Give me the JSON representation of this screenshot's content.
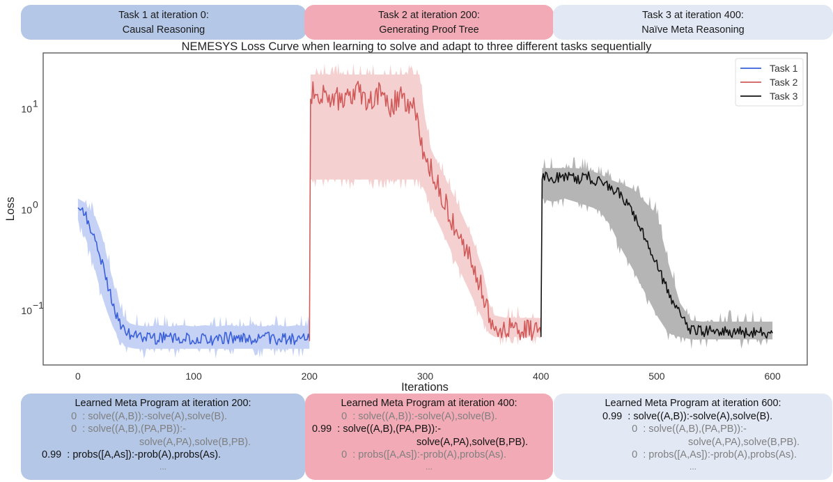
{
  "top_boxes": [
    {
      "line1": "Task 1 at iteration 0:",
      "line2": "Causal Reasoning",
      "color": "#b4c7e7"
    },
    {
      "line1": "Task 2 at iteration 200:",
      "line2": "Generating Proof Tree",
      "color": "#f2abb6"
    },
    {
      "line1": "Task 3 at iteration 400:",
      "line2": "Naïve Meta Reasoning",
      "color": "#e2e9f5"
    }
  ],
  "bottom_boxes": [
    {
      "heading": "Learned Meta Program at iteration 200:",
      "rules": [
        {
          "weight": "0",
          "text": ": solve((A,B)):-solve(A),solve(B).",
          "active": false
        },
        {
          "weight": "0",
          "text": ": solve((A,B),(PA,PB)):-",
          "cont": "solve(A,PA),solve(B,PB).",
          "active": false
        },
        {
          "weight": "0.99",
          "text": ": probs([A,As]):-prob(A),probs(As).",
          "active": true
        }
      ],
      "ellipsis": "..."
    },
    {
      "heading": "Learned Meta Program at iteration 400:",
      "rules": [
        {
          "weight": "0",
          "text": ": solve((A,B)):-solve(A),solve(B).",
          "active": false
        },
        {
          "weight": "0.99",
          "text": ": solve((A,B),(PA,PB)):-",
          "cont": "solve(A,PA),solve(B,PB).",
          "active": true
        },
        {
          "weight": "0",
          "text": ": probs([A,As]):-prob(A),probs(As).",
          "active": false
        }
      ],
      "ellipsis": "..."
    },
    {
      "heading": "Learned Meta Program at iteration 600:",
      "rules": [
        {
          "weight": "0.99",
          "text": ": solve((A,B)):-solve(A),solve(B).",
          "active": true
        },
        {
          "weight": "0",
          "text": ": solve((A,B),(PA,PB)):-",
          "cont": "solve(A,PA),solve(B,PB).",
          "active": false
        },
        {
          "weight": "0",
          "text": ": probs([A,As]):-prob(A),probs(As).",
          "active": false
        }
      ],
      "ellipsis": "..."
    }
  ],
  "chart_data": {
    "type": "line",
    "title": "NEMESYS Loss Curve when learning to solve and adapt to three different tasks sequentially",
    "xlabel": "Iterations",
    "ylabel": "Loss",
    "yscale": "log",
    "xlim": [
      -30,
      630
    ],
    "ylim": [
      0.029,
      36
    ],
    "xticks": [
      0,
      100,
      200,
      300,
      400,
      500,
      600
    ],
    "yticks": [
      {
        "value": 0.1,
        "base": "10",
        "exp": "−1"
      },
      {
        "value": 1,
        "base": "10",
        "exp": "0"
      },
      {
        "value": 10,
        "base": "10",
        "exp": "1"
      }
    ],
    "grid": false,
    "legend": {
      "position": "top-right",
      "entries": [
        "Task 1",
        "Task 2",
        "Task 3"
      ]
    },
    "series": [
      {
        "name": "Task 1",
        "color": "#3a5fd9",
        "band_color": "#b7c7f2",
        "x": [
          0,
          5,
          10,
          15,
          20,
          25,
          30,
          35,
          40,
          45,
          50,
          60,
          70,
          80,
          90,
          100,
          110,
          120,
          130,
          140,
          150,
          160,
          170,
          180,
          190,
          200
        ],
        "y": [
          1.05,
          0.95,
          0.7,
          0.5,
          0.32,
          0.2,
          0.12,
          0.08,
          0.065,
          0.058,
          0.055,
          0.054,
          0.053,
          0.055,
          0.052,
          0.054,
          0.053,
          0.052,
          0.054,
          0.053,
          0.052,
          0.054,
          0.053,
          0.052,
          0.053,
          0.052
        ],
        "lower": [
          0.8,
          0.6,
          0.4,
          0.25,
          0.15,
          0.1,
          0.07,
          0.055,
          0.045,
          0.043,
          0.042,
          0.042,
          0.042,
          0.042,
          0.042,
          0.042,
          0.042,
          0.042,
          0.042,
          0.042,
          0.042,
          0.042,
          0.042,
          0.042,
          0.042,
          0.042
        ],
        "upper": [
          1.3,
          1.2,
          1.0,
          0.85,
          0.6,
          0.35,
          0.2,
          0.12,
          0.085,
          0.075,
          0.072,
          0.07,
          0.072,
          0.07,
          0.072,
          0.07,
          0.072,
          0.07,
          0.072,
          0.07,
          0.072,
          0.07,
          0.072,
          0.07,
          0.072,
          0.07
        ]
      },
      {
        "name": "Task 2",
        "color": "#d05a5a",
        "band_color": "#f2c4c4",
        "x": [
          200,
          201,
          210,
          220,
          230,
          240,
          250,
          260,
          270,
          280,
          290,
          295,
          300,
          305,
          310,
          320,
          330,
          340,
          350,
          355,
          360,
          370,
          380,
          390,
          400
        ],
        "y": [
          0.05,
          15,
          13,
          14,
          11,
          15,
          12,
          14,
          11,
          13,
          10,
          6,
          3,
          2.6,
          1.8,
          1.0,
          0.55,
          0.3,
          0.15,
          0.09,
          0.07,
          0.065,
          0.063,
          0.062,
          0.06
        ],
        "lower": [
          0.05,
          2,
          2,
          2,
          2,
          2,
          2,
          2,
          2,
          2,
          2,
          2,
          1.5,
          1.1,
          0.8,
          0.45,
          0.25,
          0.14,
          0.08,
          0.06,
          0.055,
          0.055,
          0.055,
          0.055,
          0.055
        ],
        "upper": [
          0.05,
          22,
          22,
          22,
          22,
          22,
          22,
          22,
          22,
          22,
          22,
          22,
          8,
          4,
          3,
          1.8,
          1.0,
          0.55,
          0.25,
          0.12,
          0.09,
          0.085,
          0.085,
          0.085,
          0.085
        ]
      },
      {
        "name": "Task 3",
        "color": "#111111",
        "band_color": "#a8a8a8",
        "x": [
          400,
          401,
          410,
          420,
          430,
          440,
          450,
          460,
          470,
          480,
          490,
          500,
          510,
          520,
          530,
          540,
          550,
          560,
          570,
          580,
          590,
          600
        ],
        "y": [
          0.055,
          2.2,
          2.1,
          2.2,
          2.0,
          2.1,
          1.9,
          1.7,
          1.4,
          0.9,
          0.55,
          0.3,
          0.15,
          0.09,
          0.065,
          0.063,
          0.062,
          0.062,
          0.061,
          0.062,
          0.061,
          0.06
        ],
        "lower": [
          0.055,
          1.3,
          1.2,
          1.3,
          1.2,
          1.1,
          1.0,
          0.7,
          0.4,
          0.25,
          0.15,
          0.09,
          0.06,
          0.055,
          0.052,
          0.052,
          0.052,
          0.052,
          0.052,
          0.052,
          0.052,
          0.052
        ],
        "upper": [
          0.055,
          2.6,
          2.6,
          2.6,
          2.6,
          2.5,
          2.3,
          2.0,
          1.8,
          1.6,
          1.2,
          0.9,
          0.3,
          0.12,
          0.08,
          0.078,
          0.078,
          0.078,
          0.078,
          0.078,
          0.078,
          0.078
        ]
      }
    ]
  }
}
